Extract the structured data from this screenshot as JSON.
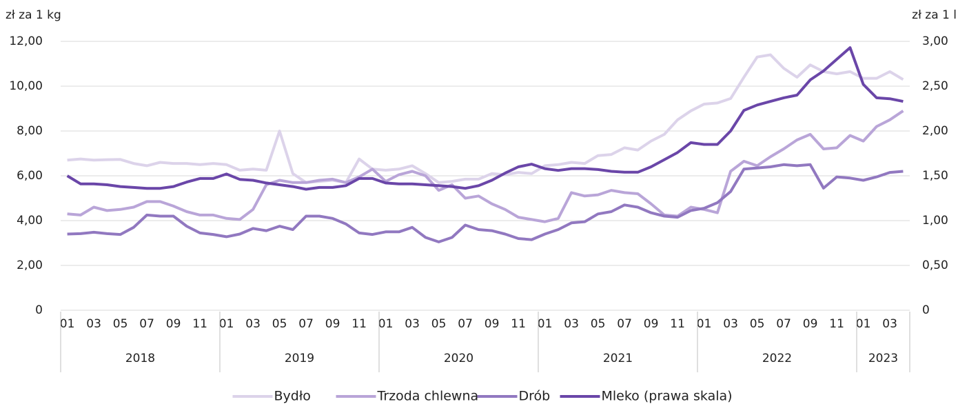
{
  "chart_data": {
    "type": "line",
    "y_label": "zł za 1 kg",
    "y2_label": "zł za 1 l",
    "categories": [
      "01",
      null,
      "03",
      null,
      "05",
      null,
      "07",
      null,
      "09",
      null,
      "11",
      null,
      "01",
      null,
      "03",
      null,
      "05",
      null,
      "07",
      null,
      "09",
      null,
      "11",
      null,
      "01",
      null,
      "03",
      null,
      "05",
      null,
      "07",
      null,
      "09",
      null,
      "11",
      null,
      "01",
      null,
      "03",
      null,
      "05",
      null,
      "07",
      null,
      "09",
      null,
      "11",
      null,
      "01",
      null,
      "03",
      null,
      "05",
      null,
      "07",
      null,
      "09",
      null,
      "11",
      null,
      "01",
      null,
      "03",
      null
    ],
    "years": [
      "2018",
      "2019",
      "2020",
      "2021",
      "2022",
      "2023"
    ],
    "ylim": [
      0,
      12
    ],
    "yticks": [
      0,
      {
        "value": 2,
        "label": "2,00"
      },
      {
        "value": 4,
        "label": "4,00"
      },
      {
        "value": 6,
        "label": "6,00"
      },
      {
        "value": 8,
        "label": "8,00"
      },
      {
        "value": 10,
        "label": "10,00"
      },
      {
        "value": 12,
        "label": "12,00"
      }
    ],
    "y2lim": [
      0,
      3
    ],
    "y2ticks": [
      0,
      {
        "value": 0.5,
        "label": "0,50"
      },
      {
        "value": 1,
        "label": "1,00"
      },
      {
        "value": 1.5,
        "label": "1,50"
      },
      {
        "value": 2,
        "label": "2,00"
      },
      {
        "value": 2.5,
        "label": "2,50"
      },
      {
        "value": 3,
        "label": "3,00"
      }
    ],
    "grid": true,
    "legend": "bottom",
    "series": [
      {
        "name": "Bydło",
        "color": "#dcd3ea",
        "values": [
          6.7,
          6.75,
          6.7,
          6.72,
          6.73,
          6.55,
          6.45,
          6.6,
          6.55,
          6.55,
          6.5,
          6.55,
          6.5,
          6.25,
          6.3,
          6.25,
          8.0,
          6.1,
          5.7,
          5.75,
          5.8,
          5.7,
          6.75,
          6.3,
          6.25,
          6.3,
          6.45,
          6.1,
          5.7,
          5.75,
          5.85,
          5.85,
          6.1,
          6.05,
          6.15,
          6.1,
          6.45,
          6.5,
          6.6,
          6.55,
          6.9,
          6.95,
          7.25,
          7.15,
          7.55,
          7.85,
          8.5,
          8.9,
          9.2,
          9.25,
          9.45,
          10.4,
          11.3,
          11.4,
          10.8,
          10.4,
          10.95,
          10.65,
          10.55,
          10.65,
          10.35,
          10.35,
          10.65,
          10.3
        ]
      },
      {
        "name": "Trzoda chlewna",
        "color": "#b9a5d8",
        "values": [
          4.3,
          4.25,
          4.6,
          4.45,
          4.5,
          4.6,
          4.85,
          4.85,
          4.65,
          4.4,
          4.25,
          4.25,
          4.1,
          4.05,
          4.5,
          5.6,
          5.8,
          5.7,
          5.7,
          5.8,
          5.85,
          5.7,
          5.95,
          6.3,
          5.75,
          6.05,
          6.2,
          6.0,
          5.35,
          5.6,
          5.0,
          5.1,
          4.75,
          4.5,
          4.15,
          4.05,
          3.95,
          4.1,
          5.25,
          5.1,
          5.15,
          5.35,
          5.25,
          5.2,
          4.75,
          4.25,
          4.2,
          4.6,
          4.5,
          4.35,
          6.2,
          6.65,
          6.45,
          6.85,
          7.2,
          7.6,
          7.85,
          7.2,
          7.25,
          7.8,
          7.55,
          8.2,
          8.5,
          8.9
        ]
      },
      {
        "name": "Drób",
        "color": "#9178c0",
        "values": [
          3.4,
          3.42,
          3.48,
          3.42,
          3.38,
          3.7,
          4.25,
          4.2,
          4.2,
          3.75,
          3.45,
          3.38,
          3.28,
          3.4,
          3.65,
          3.55,
          3.75,
          3.6,
          4.2,
          4.2,
          4.1,
          3.85,
          3.45,
          3.38,
          3.5,
          3.5,
          3.7,
          3.25,
          3.05,
          3.25,
          3.8,
          3.6,
          3.55,
          3.4,
          3.2,
          3.15,
          3.4,
          3.6,
          3.9,
          3.95,
          4.3,
          4.4,
          4.7,
          4.6,
          4.35,
          4.2,
          4.15,
          4.45,
          4.55,
          4.8,
          5.3,
          6.3,
          6.35,
          6.4,
          6.5,
          6.45,
          6.5,
          5.45,
          5.95,
          5.9,
          5.8,
          5.95,
          6.15,
          6.2
        ]
      },
      {
        "name": "Mleko (prawa skala)",
        "color": "#6a46a8",
        "axis": "y2",
        "values": [
          1.5,
          1.41,
          1.41,
          1.4,
          1.38,
          1.37,
          1.36,
          1.36,
          1.38,
          1.43,
          1.47,
          1.47,
          1.52,
          1.46,
          1.45,
          1.42,
          1.4,
          1.38,
          1.35,
          1.37,
          1.37,
          1.39,
          1.47,
          1.47,
          1.42,
          1.41,
          1.41,
          1.4,
          1.39,
          1.38,
          1.36,
          1.39,
          1.45,
          1.53,
          1.6,
          1.63,
          1.58,
          1.56,
          1.58,
          1.58,
          1.57,
          1.55,
          1.54,
          1.54,
          1.6,
          1.68,
          1.76,
          1.87,
          1.85,
          1.85,
          2.0,
          2.23,
          2.29,
          2.33,
          2.37,
          2.4,
          2.57,
          2.67,
          2.8,
          2.93,
          2.52,
          2.37,
          2.36,
          2.33
        ]
      }
    ]
  }
}
